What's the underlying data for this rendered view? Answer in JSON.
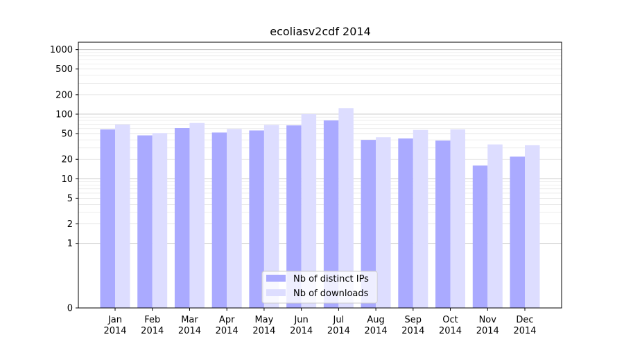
{
  "chart_data": {
    "type": "bar",
    "title": "ecoliasv2cdf 2014",
    "xlabel": "",
    "ylabel": "",
    "yscale": "symlog",
    "ylim": [
      0,
      1300
    ],
    "grid": true,
    "legend_position": "bottom-center",
    "categories": [
      [
        "Jan",
        "2014"
      ],
      [
        "Feb",
        "2014"
      ],
      [
        "Mar",
        "2014"
      ],
      [
        "Apr",
        "2014"
      ],
      [
        "May",
        "2014"
      ],
      [
        "Jun",
        "2014"
      ],
      [
        "Jul",
        "2014"
      ],
      [
        "Aug",
        "2014"
      ],
      [
        "Sep",
        "2014"
      ],
      [
        "Oct",
        "2014"
      ],
      [
        "Nov",
        "2014"
      ],
      [
        "Dec",
        "2014"
      ]
    ],
    "yticks": [
      0,
      1,
      2,
      5,
      10,
      20,
      50,
      100,
      200,
      500,
      1000
    ],
    "series": [
      {
        "name": "Nb of distinct IPs",
        "color": "#aaaaff",
        "values": [
          58,
          47,
          61,
          52,
          56,
          67,
          80,
          40,
          42,
          39,
          16,
          22
        ]
      },
      {
        "name": "Nb of downloads",
        "color": "#ddddff",
        "values": [
          69,
          51,
          73,
          59,
          68,
          100,
          124,
          44,
          57,
          58,
          34,
          33
        ]
      }
    ]
  }
}
